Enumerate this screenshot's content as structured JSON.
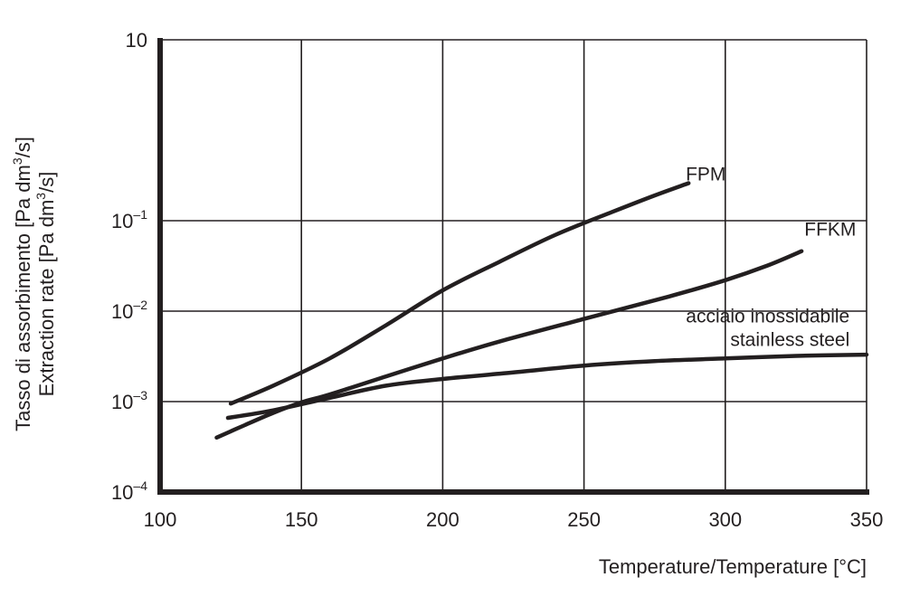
{
  "chart_data": {
    "type": "line",
    "title": "",
    "xlabel": "Temperature/Temperature [°C]",
    "ylabel_lines": [
      {
        "pre": "Tasso di assorbimento [Pa dm",
        "sup": "3",
        "post": "/s]"
      },
      {
        "pre": "Extraction rate [Pa dm",
        "sup": "3",
        "post": "/s]"
      }
    ],
    "xlim": [
      100,
      350
    ],
    "ylim": [
      0.0001,
      10
    ],
    "yscale": "log",
    "grid": true,
    "x_ticks": [
      100,
      150,
      200,
      250,
      300,
      350
    ],
    "x_tick_labels": [
      "100",
      "150",
      "200",
      "250",
      "300",
      "350"
    ],
    "y_ticks": [
      {
        "value": 10,
        "base": "10",
        "exp": ""
      },
      {
        "value": 0.1,
        "base": "10",
        "exp": "–1"
      },
      {
        "value": 0.01,
        "base": "10",
        "exp": "–2"
      },
      {
        "value": 0.001,
        "base": "10",
        "exp": "–3"
      },
      {
        "value": 0.0001,
        "base": "10",
        "exp": "–4"
      }
    ],
    "series": [
      {
        "name": "FPM",
        "label_lines": [
          "FPM"
        ],
        "label_at": {
          "x": 286,
          "y": 0.28,
          "anchor": "start"
        },
        "points": [
          [
            125,
            0.00095
          ],
          [
            140,
            0.0015
          ],
          [
            160,
            0.003
          ],
          [
            180,
            0.007
          ],
          [
            200,
            0.017
          ],
          [
            220,
            0.035
          ],
          [
            240,
            0.07
          ],
          [
            260,
            0.125
          ],
          [
            275,
            0.19
          ],
          [
            287,
            0.26
          ]
        ]
      },
      {
        "name": "FFKM",
        "label_lines": [
          "FFKM"
        ],
        "label_at": {
          "x": 328,
          "y": 0.068,
          "anchor": "start"
        },
        "points": [
          [
            120,
            0.0004
          ],
          [
            130,
            0.00055
          ],
          [
            140,
            0.00075
          ],
          [
            150,
            0.00098
          ],
          [
            160,
            0.0012
          ],
          [
            180,
            0.0019
          ],
          [
            200,
            0.003
          ],
          [
            220,
            0.0046
          ],
          [
            250,
            0.0082
          ],
          [
            280,
            0.0145
          ],
          [
            300,
            0.022
          ],
          [
            315,
            0.032
          ],
          [
            327,
            0.046
          ]
        ]
      },
      {
        "name": "acciaio inossidabile stainless steel",
        "label_lines": [
          "acciaio inossidabile",
          "stainless steel"
        ],
        "label_at": {
          "x": 344,
          "y": 0.0075,
          "anchor": "end"
        },
        "points": [
          [
            124,
            0.00066
          ],
          [
            140,
            0.0008
          ],
          [
            160,
            0.0011
          ],
          [
            180,
            0.0015
          ],
          [
            200,
            0.00178
          ],
          [
            225,
            0.0021
          ],
          [
            250,
            0.0025
          ],
          [
            275,
            0.0028
          ],
          [
            300,
            0.003
          ],
          [
            325,
            0.0032
          ],
          [
            350,
            0.0033
          ]
        ]
      }
    ]
  }
}
